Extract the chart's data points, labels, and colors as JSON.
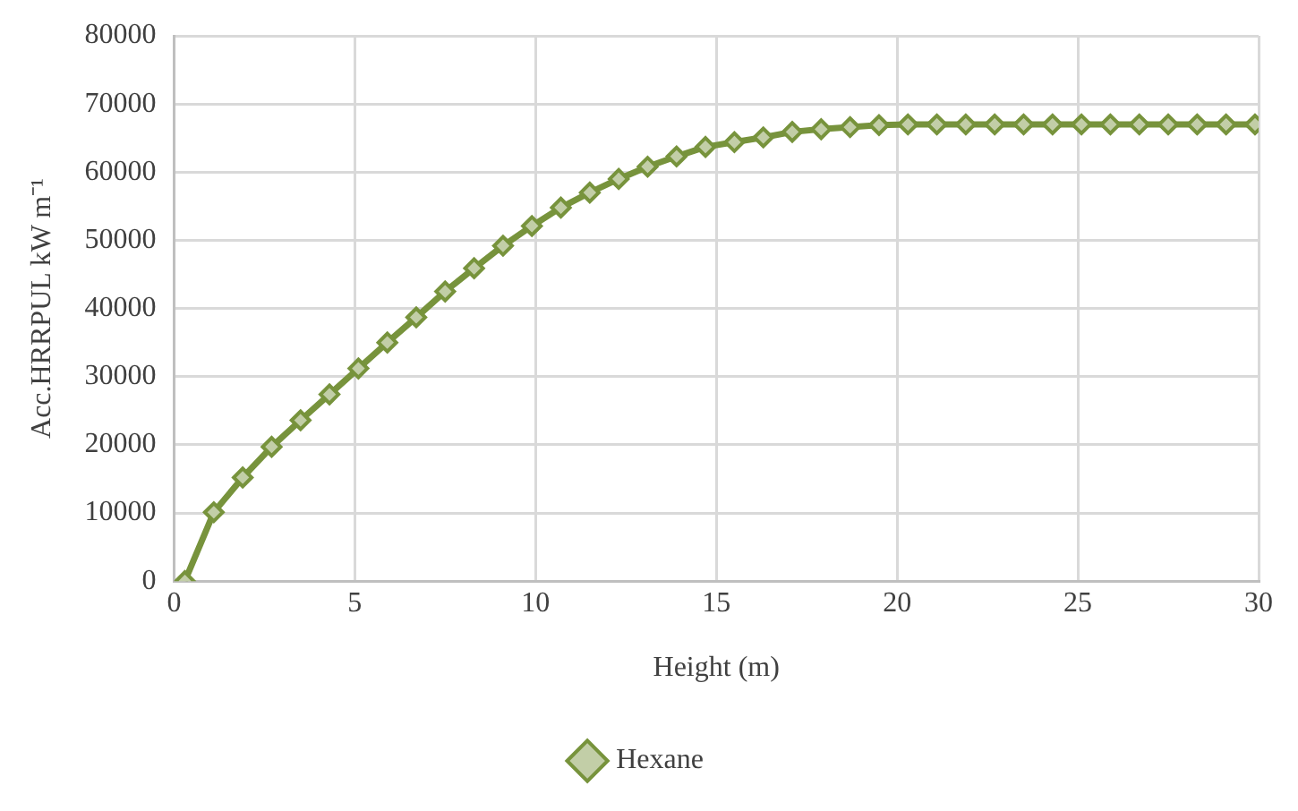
{
  "chart_data": {
    "type": "line",
    "xlabel": "Height (m)",
    "ylabel": "Acc.HRRPUL kW m⁻¹",
    "x": [
      0.3,
      1.1,
      1.9,
      2.7,
      3.5,
      4.3,
      5.1,
      5.9,
      6.7,
      7.5,
      8.3,
      9.1,
      9.9,
      10.7,
      11.5,
      12.3,
      13.1,
      13.9,
      14.7,
      15.5,
      16.3,
      17.1,
      17.9,
      18.7,
      19.5,
      20.3,
      21.1,
      21.9,
      22.7,
      23.5,
      24.3,
      25.1,
      25.9,
      26.7,
      27.5,
      28.3,
      29.1,
      29.9
    ],
    "series": [
      {
        "name": "Hexane",
        "color": "#77933c",
        "values": [
          0,
          10100,
          15200,
          19700,
          23600,
          27400,
          31200,
          35000,
          38700,
          42500,
          45900,
          49200,
          52100,
          54800,
          57000,
          59000,
          60800,
          62300,
          63700,
          64400,
          65100,
          65900,
          66300,
          66600,
          66900,
          67000,
          67000,
          67000,
          67000,
          67000,
          67000,
          67000,
          67000,
          67000,
          67000,
          67000,
          67000,
          67000
        ]
      }
    ],
    "xlim": [
      0,
      30
    ],
    "xticks": [
      0,
      5,
      10,
      15,
      20,
      25,
      30
    ],
    "ylim": [
      0,
      80000
    ],
    "yticks": [
      0,
      10000,
      20000,
      30000,
      40000,
      50000,
      60000,
      70000,
      80000
    ],
    "grid": true,
    "legend": "bottom",
    "marker": "diamond",
    "line_style": "solid"
  }
}
